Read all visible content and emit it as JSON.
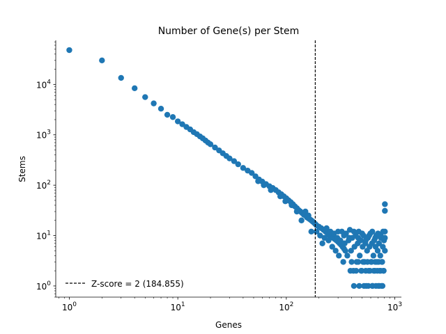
{
  "chart_data": {
    "type": "scatter",
    "title": "Number of Gene(s) per Stem",
    "xlabel": "Genes",
    "ylabel": "Stems",
    "xscale": "log",
    "yscale": "log",
    "xlim": [
      0.75,
      1150
    ],
    "ylim": [
      0.6,
      75000
    ],
    "x_ticks": [
      {
        "value": 1,
        "base": "10",
        "exp": "0"
      },
      {
        "value": 10,
        "base": "10",
        "exp": "1"
      },
      {
        "value": 100,
        "base": "10",
        "exp": "2"
      },
      {
        "value": 1000,
        "base": "10",
        "exp": "3"
      }
    ],
    "y_ticks": [
      {
        "value": 1,
        "base": "10",
        "exp": "0"
      },
      {
        "value": 10,
        "base": "10",
        "exp": "1"
      },
      {
        "value": 100,
        "base": "10",
        "exp": "2"
      },
      {
        "value": 1000,
        "base": "10",
        "exp": "3"
      },
      {
        "value": 10000,
        "base": "10",
        "exp": "4"
      }
    ],
    "colors": {
      "points": "#1f77b4",
      "threshold": "#000000"
    },
    "threshold": {
      "x": 184.855,
      "label": "Z-score = 2 (184.855)",
      "style": "dashed"
    },
    "legend": {
      "placement": "lower-left"
    },
    "grid": false,
    "series": [
      {
        "points": [
          [
            1,
            48000
          ],
          [
            2,
            30000
          ],
          [
            3,
            13500
          ],
          [
            4,
            8400
          ],
          [
            5,
            5600
          ],
          [
            6,
            4200
          ],
          [
            7,
            3300
          ],
          [
            8,
            2500
          ],
          [
            9,
            2250
          ],
          [
            10,
            1850
          ],
          [
            11,
            1620
          ],
          [
            12,
            1430
          ],
          [
            13,
            1280
          ],
          [
            14,
            1130
          ],
          [
            15,
            1030
          ],
          [
            16,
            930
          ],
          [
            17,
            850
          ],
          [
            18,
            770
          ],
          [
            19,
            700
          ],
          [
            20,
            650
          ],
          [
            22,
            560
          ],
          [
            24,
            490
          ],
          [
            26,
            430
          ],
          [
            28,
            380
          ],
          [
            30,
            340
          ],
          [
            33,
            300
          ],
          [
            36,
            260
          ],
          [
            40,
            220
          ],
          [
            44,
            195
          ],
          [
            48,
            175
          ],
          [
            52,
            150
          ],
          [
            56,
            130
          ],
          [
            60,
            118
          ],
          [
            65,
            105
          ],
          [
            70,
            95
          ],
          [
            75,
            88
          ],
          [
            80,
            80
          ],
          [
            85,
            72
          ],
          [
            90,
            66
          ],
          [
            95,
            60
          ],
          [
            100,
            55
          ],
          [
            105,
            50
          ],
          [
            110,
            46
          ],
          [
            115,
            42
          ],
          [
            120,
            38
          ],
          [
            125,
            35
          ],
          [
            130,
            32
          ],
          [
            135,
            30
          ],
          [
            140,
            28
          ],
          [
            145,
            26
          ],
          [
            150,
            25
          ],
          [
            155,
            23
          ],
          [
            160,
            22
          ],
          [
            165,
            21
          ],
          [
            170,
            20
          ],
          [
            175,
            19
          ],
          [
            180,
            18
          ],
          [
            185,
            17
          ],
          [
            190,
            16
          ],
          [
            200,
            15
          ],
          [
            210,
            14
          ],
          [
            220,
            13
          ],
          [
            230,
            12
          ],
          [
            240,
            11
          ],
          [
            250,
            10
          ],
          [
            260,
            9.5
          ],
          [
            270,
            9
          ],
          [
            280,
            8.5
          ],
          [
            290,
            8
          ],
          [
            300,
            7.5
          ],
          [
            310,
            7
          ],
          [
            320,
            6.5
          ],
          [
            330,
            6
          ],
          [
            340,
            5.5
          ],
          [
            350,
            5
          ],
          [
            55,
            120
          ],
          [
            62,
            100
          ],
          [
            72,
            80
          ],
          [
            88,
            60
          ],
          [
            98,
            48
          ],
          [
            112,
            40
          ],
          [
            125,
            30
          ],
          [
            138,
            20
          ],
          [
            150,
            30
          ],
          [
            160,
            25
          ],
          [
            170,
            12
          ],
          [
            190,
            12
          ],
          [
            205,
            10
          ],
          [
            215,
            7
          ],
          [
            225,
            9
          ],
          [
            235,
            14
          ],
          [
            245,
            8
          ],
          [
            255,
            12
          ],
          [
            265,
            6
          ],
          [
            275,
            11
          ],
          [
            285,
            5
          ],
          [
            295,
            9
          ],
          [
            305,
            4
          ],
          [
            315,
            8
          ],
          [
            325,
            12
          ],
          [
            335,
            3
          ],
          [
            345,
            7
          ],
          [
            355,
            11
          ],
          [
            365,
            4
          ],
          [
            375,
            8
          ],
          [
            385,
            13
          ],
          [
            395,
            5
          ],
          [
            405,
            9
          ],
          [
            415,
            2
          ],
          [
            425,
            6
          ],
          [
            435,
            10
          ],
          [
            445,
            3
          ],
          [
            455,
            7
          ],
          [
            465,
            12
          ],
          [
            475,
            4
          ],
          [
            485,
            8
          ],
          [
            495,
            2
          ],
          [
            505,
            6
          ],
          [
            515,
            10
          ],
          [
            525,
            3
          ],
          [
            535,
            7
          ],
          [
            545,
            1
          ],
          [
            555,
            5
          ],
          [
            565,
            9
          ],
          [
            575,
            2
          ],
          [
            585,
            6
          ],
          [
            595,
            11
          ],
          [
            605,
            3
          ],
          [
            615,
            7
          ],
          [
            625,
            1
          ],
          [
            635,
            4
          ],
          [
            645,
            8
          ],
          [
            655,
            2
          ],
          [
            665,
            6
          ],
          [
            675,
            10
          ],
          [
            685,
            3
          ],
          [
            695,
            5
          ],
          [
            705,
            1
          ],
          [
            715,
            7
          ],
          [
            725,
            2
          ],
          [
            735,
            4
          ],
          [
            745,
            9
          ],
          [
            755,
            1
          ],
          [
            765,
            3
          ],
          [
            775,
            6
          ],
          [
            785,
            2
          ],
          [
            795,
            8
          ],
          [
            810,
            42
          ],
          [
            810,
            31
          ],
          [
            810,
            12
          ],
          [
            810,
            9
          ],
          [
            810,
            5
          ],
          [
            420,
            1
          ],
          [
            470,
            1
          ],
          [
            520,
            1
          ],
          [
            570,
            1
          ],
          [
            620,
            1
          ],
          [
            670,
            1
          ],
          [
            720,
            1
          ],
          [
            770,
            1
          ],
          [
            390,
            2
          ],
          [
            440,
            2
          ],
          [
            490,
            2
          ],
          [
            540,
            2
          ],
          [
            590,
            2
          ],
          [
            640,
            2
          ],
          [
            690,
            2
          ],
          [
            740,
            2
          ],
          [
            790,
            2
          ],
          [
            400,
            3
          ],
          [
            460,
            3
          ],
          [
            510,
            3
          ],
          [
            560,
            3
          ],
          [
            610,
            3
          ],
          [
            660,
            3
          ],
          [
            710,
            3
          ],
          [
            760,
            3
          ],
          [
            300,
            12
          ],
          [
            340,
            10
          ],
          [
            380,
            9
          ],
          [
            420,
            12
          ],
          [
            460,
            9
          ],
          [
            500,
            11
          ],
          [
            540,
            8
          ],
          [
            580,
            10
          ],
          [
            620,
            12
          ],
          [
            660,
            9
          ],
          [
            700,
            11
          ],
          [
            740,
            10
          ],
          [
            780,
            12
          ],
          [
            800,
            9
          ]
        ]
      }
    ]
  }
}
